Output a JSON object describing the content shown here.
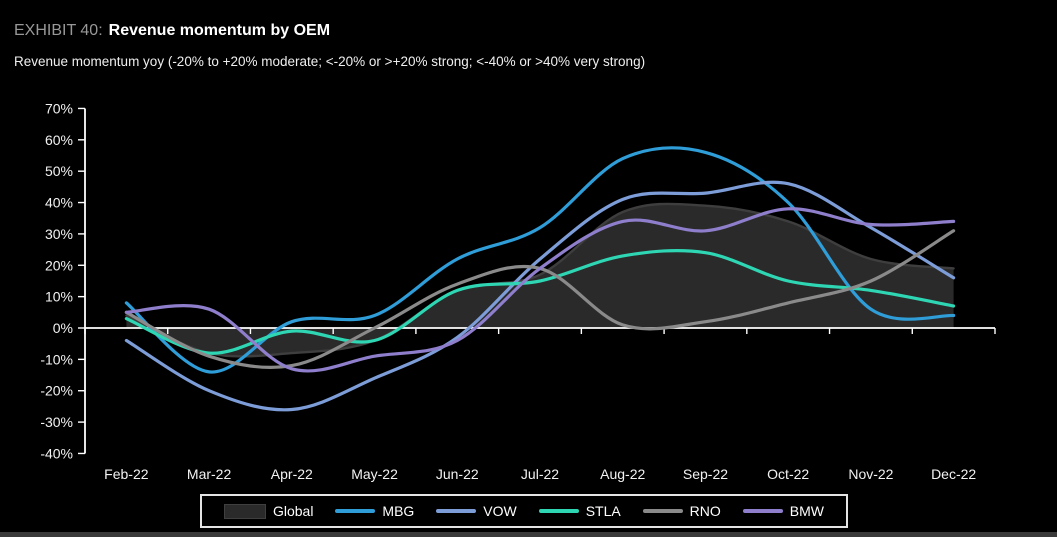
{
  "header": {
    "exhibit_label": "EXHIBIT 40:",
    "title": "Revenue momentum by OEM",
    "subtitle": "Revenue momentum yoy (-20% to +20% moderate; <-20% or >+20% strong; <-40% or >40% very strong)"
  },
  "colors": {
    "background": "#000000",
    "axis": "#ffffff",
    "tick_text": "#f2f2f2",
    "area_fill": "#2a2a2a",
    "area_edge": "#3e3e3e",
    "legend_border": "#e4e4e4"
  },
  "chart_data": {
    "type": "line",
    "title": "Revenue momentum by OEM",
    "xlabel": "",
    "ylabel": "",
    "ylim": [
      -40,
      70
    ],
    "grid": false,
    "legend_position": "bottom",
    "categories": [
      "Feb-22",
      "Mar-22",
      "Apr-22",
      "May-22",
      "Jun-22",
      "Jul-22",
      "Aug-22",
      "Sep-22",
      "Oct-22",
      "Nov-22",
      "Dec-22"
    ],
    "y_ticks": [
      "70%",
      "60%",
      "50%",
      "40%",
      "30%",
      "20%",
      "10%",
      "0%",
      "-10%",
      "-20%",
      "-30%",
      "-40%"
    ],
    "series": [
      {
        "name": "Global",
        "type": "area",
        "color": "#2a2a2a",
        "edge": "#3e3e3e",
        "values": [
          4,
          -8,
          -8,
          -4,
          12,
          17,
          37,
          39,
          34,
          22,
          19
        ]
      },
      {
        "name": "MBG",
        "type": "line",
        "color": "#2f9dd8",
        "values": [
          8,
          -14,
          2,
          4,
          22,
          32,
          54,
          56,
          40,
          6,
          4
        ]
      },
      {
        "name": "VOW",
        "type": "line",
        "color": "#7d9dd8",
        "values": [
          -4,
          -20,
          -26,
          -16,
          -3,
          22,
          41,
          43,
          46,
          32,
          16
        ]
      },
      {
        "name": "STLA",
        "type": "line",
        "color": "#2ed6b4",
        "values": [
          3,
          -8,
          -1,
          -4,
          12,
          15,
          23,
          24,
          15,
          12,
          7
        ]
      },
      {
        "name": "RNO",
        "type": "line",
        "color": "#8a8a8a",
        "values": [
          5,
          -9,
          -12,
          0,
          14,
          19,
          1,
          2,
          8,
          15,
          31
        ]
      },
      {
        "name": "BMW",
        "type": "line",
        "color": "#8e7ecb",
        "values": [
          5,
          6,
          -13,
          -9,
          -4,
          19,
          34,
          31,
          38,
          33,
          34
        ]
      }
    ]
  }
}
